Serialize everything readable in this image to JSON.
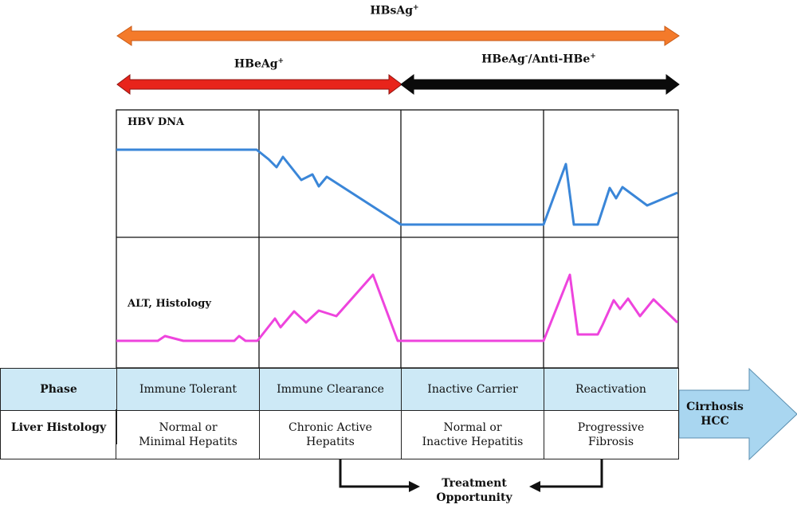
{
  "top": {
    "hbsag": {
      "label": "HBsAg",
      "sup": "+"
    },
    "hbeag_pos": {
      "label": "HBeAg",
      "sup": "+"
    },
    "hbeag_neg": {
      "label_a": "HBeAg",
      "sup_a": "-",
      "label_b": "/Anti-HBe",
      "sup_b": "+"
    }
  },
  "panels": {
    "dna_label": "HBV DNA",
    "alt_label": "ALT, Histology"
  },
  "table": {
    "row1_header": "Phase",
    "row2_header": "Liver Histology",
    "phases": [
      "Immune Tolerant",
      "Immune Clearance",
      "Inactive Carrier",
      "Reactivation"
    ],
    "histology": [
      [
        "Normal or",
        "Minimal Hepatits"
      ],
      [
        "Chronic Active",
        "Hepatits"
      ],
      [
        "Normal or",
        "Inactive Hepatitis"
      ],
      [
        "Progressive",
        "Fibrosis"
      ]
    ]
  },
  "outcome": {
    "line1": "Cirrhosis",
    "line2": "HCC"
  },
  "treatment": {
    "line1": "Treatment",
    "line2": "Opportunity"
  },
  "colors": {
    "orange": "#f47a2a",
    "red": "#e8241b",
    "black": "#0a0a0a",
    "dna_line": "#3a86d8",
    "alt_line": "#ee44dd",
    "table_header_bg": "#cde9f6",
    "outcome_arrow": "#a9d6f0"
  }
}
